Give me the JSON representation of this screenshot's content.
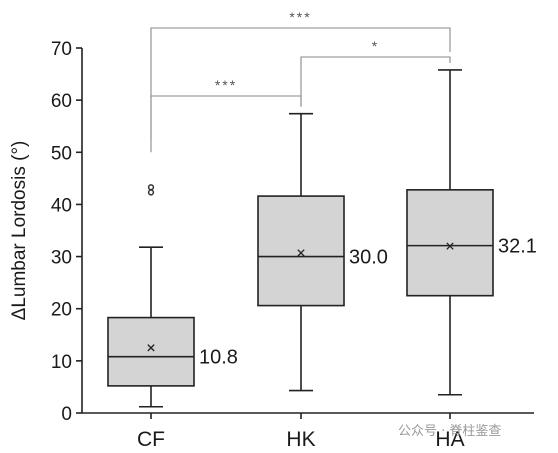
{
  "chart_data": {
    "type": "box",
    "ylabel": "ΔLumbar Lordosis (°)",
    "ylim": [
      0,
      70
    ],
    "yticks": [
      0,
      10,
      20,
      30,
      40,
      50,
      60,
      70
    ],
    "grid": false,
    "categories": [
      "CF",
      "HK",
      "HA"
    ],
    "boxes": [
      {
        "category": "CF",
        "whisker_low": 1.2,
        "q1": 5.2,
        "median": 10.8,
        "q3": 18.3,
        "whisker_high": 31.8,
        "mean": 12.5,
        "outliers": [
          42.3,
          43.3
        ],
        "median_label": "10.8"
      },
      {
        "category": "HK",
        "whisker_low": 4.3,
        "q1": 20.6,
        "median": 30.0,
        "q3": 41.6,
        "whisker_high": 57.4,
        "mean": 30.7,
        "outliers": [],
        "median_label": "30.0"
      },
      {
        "category": "HA",
        "whisker_low": 3.5,
        "q1": 22.5,
        "median": 32.1,
        "q3": 42.8,
        "whisker_high": 65.8,
        "mean": 32.0,
        "outliers": [],
        "median_label": "32.1"
      }
    ],
    "significance": [
      {
        "from": "CF",
        "to": "HK",
        "label": "***"
      },
      {
        "from": "HK",
        "to": "HA",
        "label": "*"
      },
      {
        "from": "CF",
        "to": "HA",
        "label": "***"
      }
    ]
  },
  "watermark": "公众号 · 脊柱鉴查"
}
